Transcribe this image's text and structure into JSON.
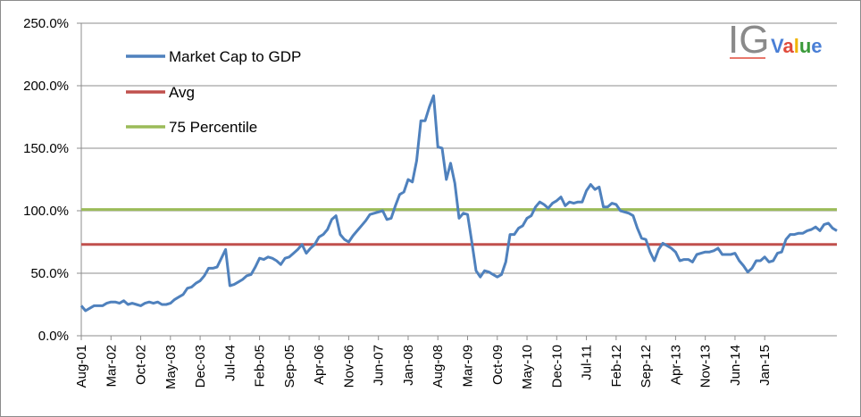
{
  "logo": {
    "ig": "IG",
    "value_letters": [
      "V",
      "a",
      "l",
      "u",
      "e"
    ],
    "value_colors": [
      "#4a7fd6",
      "#e04a3a",
      "#f0b400",
      "#3a9a3a",
      "#4a7fd6"
    ],
    "ig_color": "#8a8a8a",
    "underline_color": "#e04a3a"
  },
  "chart_data": {
    "type": "line",
    "title": "",
    "xlabel": "",
    "ylabel": "",
    "ylim": [
      0,
      250
    ],
    "y_tick_labels": [
      "0.0%",
      "50.0%",
      "100.0%",
      "150.0%",
      "200.0%",
      "250.0%"
    ],
    "y_ticks": [
      0,
      50,
      100,
      150,
      200,
      250
    ],
    "x_tick_labels": [
      "Aug-01",
      "Mar-02",
      "Oct-02",
      "May-03",
      "Dec-03",
      "Jul-04",
      "Feb-05",
      "Sep-05",
      "Apr-06",
      "Nov-06",
      "Jun-07",
      "Jan-08",
      "Aug-08",
      "Mar-09",
      "Oct-09",
      "May-10",
      "Dec-10",
      "Jul-11",
      "Feb-12",
      "Sep-12",
      "Apr-13",
      "Nov-13",
      "Jun-14",
      "Jan-15"
    ],
    "x_start": "Aug-01",
    "x_end": "Jun-15",
    "grid": true,
    "legend_position": "top-left",
    "series": [
      {
        "name": "Market Cap to GDP",
        "color": "#4f81bd",
        "values": [
          24,
          20,
          22,
          24,
          24,
          24,
          26,
          27,
          27,
          26,
          28,
          25,
          26,
          25,
          24,
          26,
          27,
          26,
          27,
          25,
          25,
          26,
          29,
          31,
          33,
          38,
          39,
          42,
          44,
          48,
          54,
          54,
          55,
          62,
          69,
          40,
          41,
          43,
          45,
          48,
          49,
          55,
          62,
          61,
          63,
          62,
          60,
          57,
          62,
          63,
          66,
          69,
          73,
          66,
          70,
          73,
          79,
          81,
          85,
          93,
          96,
          81,
          77,
          75,
          80,
          84,
          88,
          92,
          97,
          98,
          99,
          100,
          93,
          94,
          104,
          113,
          115,
          125,
          123,
          140,
          172,
          172,
          183,
          192,
          151,
          150,
          125,
          138,
          122,
          94,
          98,
          97,
          75,
          52,
          47,
          52,
          51,
          49,
          47,
          49,
          59,
          81,
          81,
          86,
          88,
          94,
          96,
          103,
          107,
          105,
          102,
          106,
          108,
          111,
          104,
          107,
          106,
          107,
          107,
          116,
          121,
          117,
          119,
          103,
          103,
          106,
          105,
          100,
          99,
          98,
          96,
          86,
          78,
          77,
          67,
          60,
          69,
          74,
          72,
          70,
          67,
          60,
          61,
          61,
          59,
          65,
          66,
          67,
          67,
          68,
          70,
          65,
          65,
          65,
          66,
          60,
          56,
          51,
          54,
          60,
          60,
          63,
          59,
          60,
          66,
          67,
          77,
          81,
          81,
          82,
          82,
          84,
          85,
          87,
          84,
          89,
          90,
          86,
          84
        ]
      },
      {
        "name": "Avg",
        "color": "#c0504d",
        "constant": 73
      },
      {
        "name": "75 Percentile",
        "color": "#9bbb59",
        "constant": 101
      }
    ]
  }
}
